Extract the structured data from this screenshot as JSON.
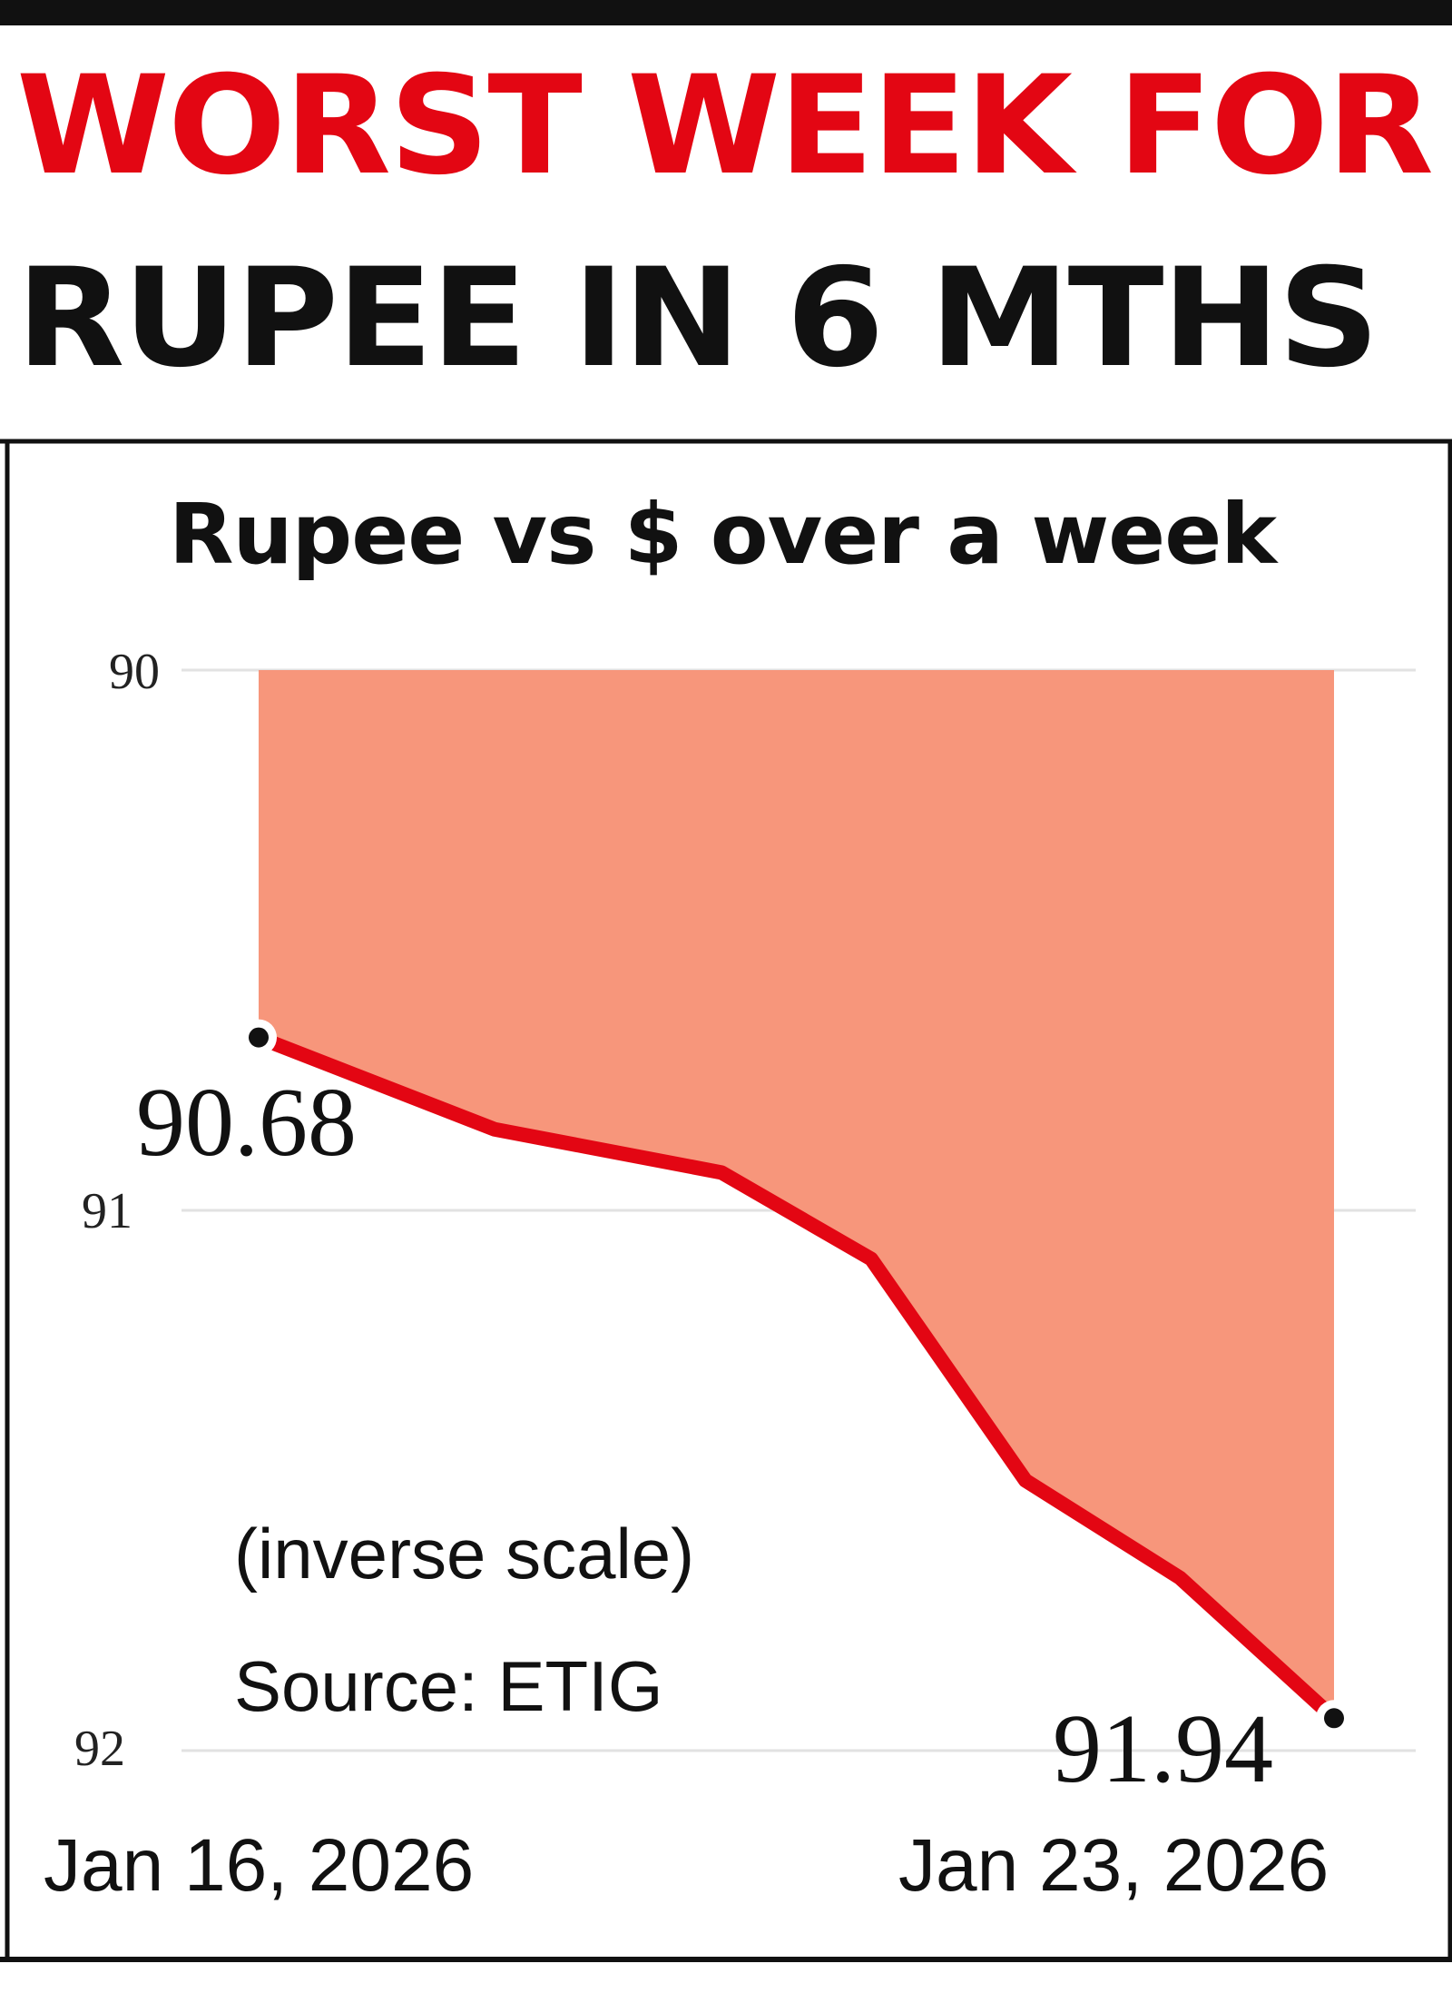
{
  "headline": {
    "line1": "WORST WEEK FOR",
    "line2": "RUPEE IN 6 MTHS"
  },
  "colors": {
    "headline_red": "#e30613",
    "headline_black": "#111111",
    "line_red": "#e30613",
    "fill_salmon": "#f7967b",
    "grid": "#e2e2e2"
  },
  "chart_data": {
    "type": "area",
    "title": "Rupee vs $ over a week",
    "y_inverted": true,
    "ylim": [
      90,
      92
    ],
    "y_ticks": [
      "90",
      "91",
      "92"
    ],
    "x": [
      "Jan 16, 2026",
      "",
      "",
      "",
      "",
      "",
      "Jan 23, 2026"
    ],
    "values": [
      90.68,
      90.85,
      90.93,
      91.09,
      91.5,
      91.68,
      91.94
    ],
    "start_label": "90.68",
    "end_label": "91.94",
    "x_start_label": "Jan 16, 2026",
    "x_end_label": "Jan 23, 2026",
    "note": "(inverse scale)",
    "source": "Source: ETIG"
  }
}
